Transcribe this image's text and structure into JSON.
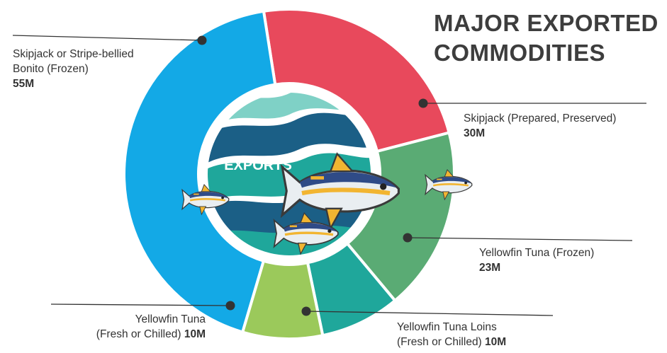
{
  "header": {
    "title_line1": "MAJOR EXPORTED",
    "title_line2": "COMMODITIES"
  },
  "center_label": "EXPORTS",
  "chart_data": {
    "type": "pie",
    "title": "MAJOR EXPORTED COMMODITIES",
    "unit": "M",
    "slices": [
      {
        "label_line1": "Skipjack or Stripe-bellied",
        "label_line2": "Bonito (Frozen)",
        "value": 55,
        "value_label": "55M",
        "color": "#13a9e6"
      },
      {
        "label_line1": "Skipjack (Prepared, Preserved)",
        "label_line2": "",
        "value": 30,
        "value_label": "30M",
        "color": "#e8495c"
      },
      {
        "label_line1": "Yellowfin Tuna (Frozen)",
        "label_line2": "",
        "value": 23,
        "value_label": "23M",
        "color": "#5aab74"
      },
      {
        "label_line1": "Yellowfin Tuna Loins",
        "label_line2": "(Fresh or Chilled)",
        "value": 10,
        "value_label": "10M",
        "color": "#1fa79b"
      },
      {
        "label_line1": "Yellowfin Tuna",
        "label_line2": "(Fresh or Chilled)",
        "value": 10,
        "value_label": "10M",
        "color": "#9bc95b"
      }
    ],
    "legend": "none"
  },
  "colors": {
    "title": "#3d3d3d",
    "wave_dark": "#1b5f86",
    "wave_teal": "#1fa79b",
    "wave_light": "#7fd1c6"
  },
  "icons": [
    "wave-emblem-icon",
    "tuna-fish-icon"
  ]
}
